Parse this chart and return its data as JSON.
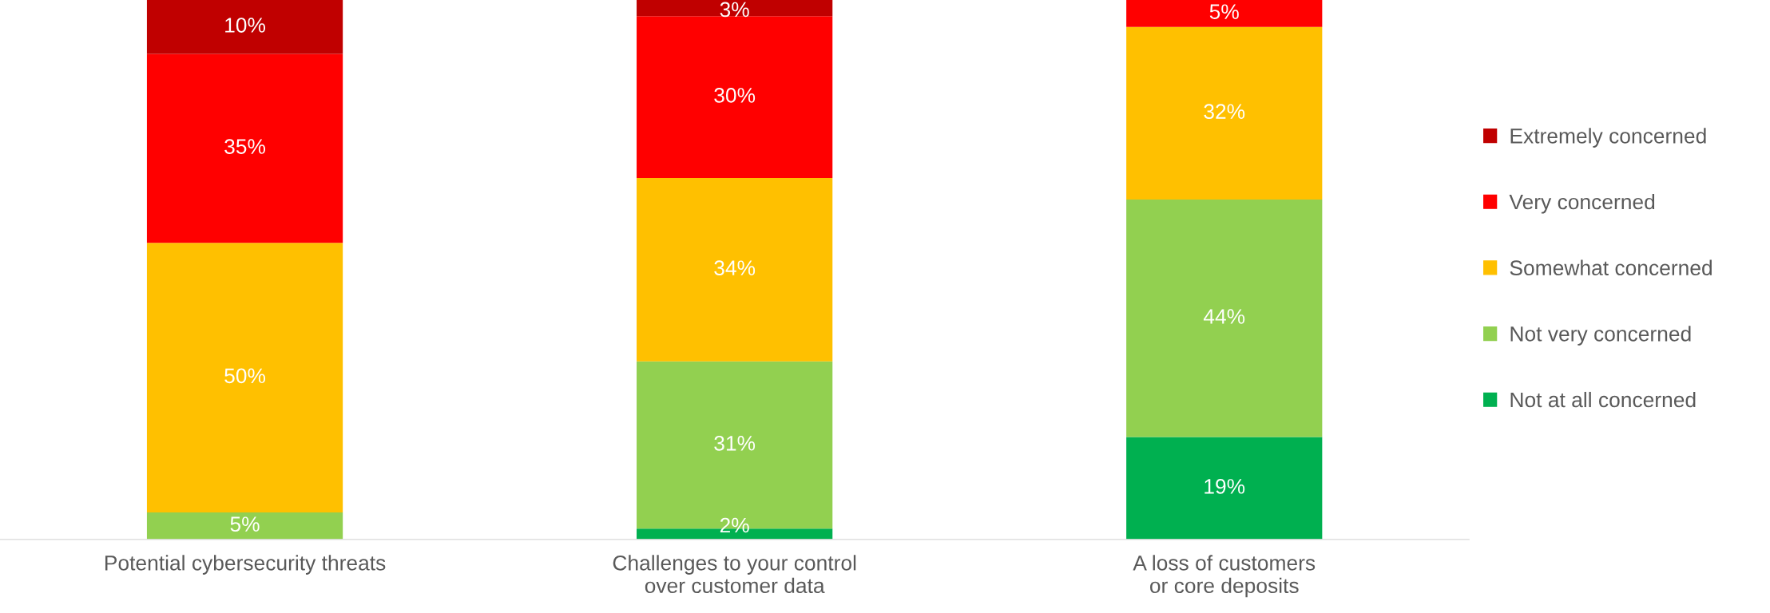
{
  "chart_data": {
    "type": "bar",
    "stacked": true,
    "categories": [
      "Potential cybersecurity threats",
      "Challenges to your control\nover customer data",
      "A loss of customers\nor core deposits"
    ],
    "ylim": [
      0,
      100
    ],
    "tick_labels": "x",
    "legend": "right",
    "grid": false,
    "series": [
      {
        "name": "Not at all concerned",
        "color": "#00b050",
        "values": [
          null,
          2,
          19
        ],
        "value_labels": [
          null,
          "2%",
          "19%"
        ]
      },
      {
        "name": "Not very concerned",
        "color": "#92d050",
        "values": [
          5,
          31,
          44
        ],
        "value_labels": [
          "5%",
          "31%",
          "44%"
        ]
      },
      {
        "name": "Somewhat concerned",
        "color": "#ffc000",
        "values": [
          50,
          34,
          32
        ],
        "value_labels": [
          "50%",
          "34%",
          "32%"
        ]
      },
      {
        "name": "Very concerned",
        "color": "#ff0000",
        "values": [
          35,
          30,
          5
        ],
        "value_labels": [
          "35%",
          "30%",
          "5%"
        ]
      },
      {
        "name": "Extremely concerned",
        "color": "#c00000",
        "values": [
          10,
          3,
          null
        ],
        "value_labels": [
          "10%",
          "3%",
          null
        ]
      }
    ]
  }
}
